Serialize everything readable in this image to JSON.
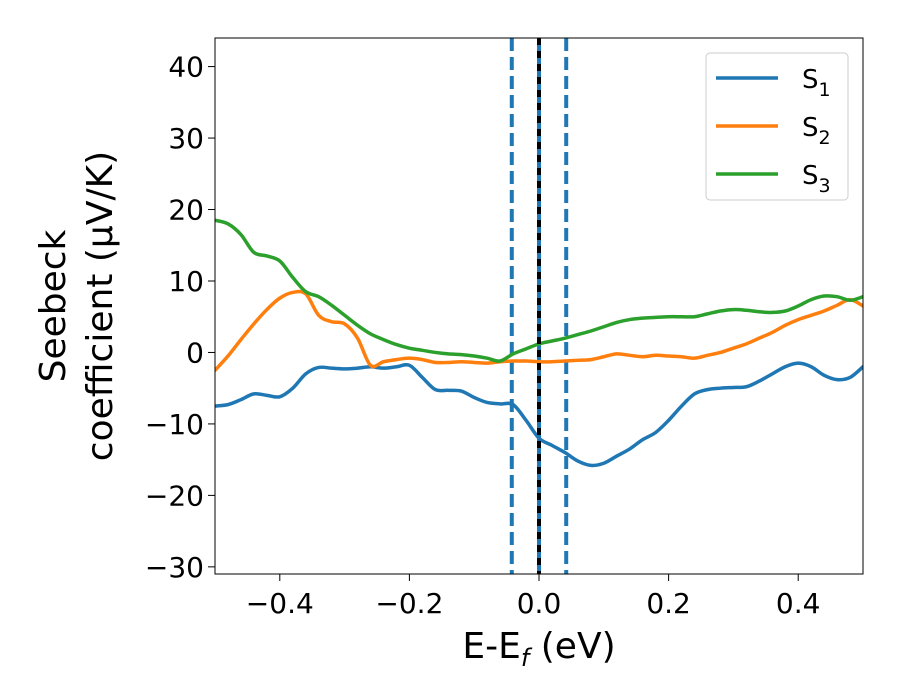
{
  "chart_data": {
    "type": "line",
    "xlabel": {
      "main": "E-E",
      "sub": "f",
      "unit": " (eV)"
    },
    "ylabel": {
      "line1": "Seebeck",
      "line2": "coefficient  (μV/K)"
    },
    "xlim": [
      -0.5,
      0.5
    ],
    "ylim": [
      -31,
      44
    ],
    "xticks": [
      -0.4,
      -0.2,
      0.0,
      0.2,
      0.4
    ],
    "xtick_labels": [
      "−0.4",
      "−0.2",
      "0.0",
      "0.2",
      "0.4"
    ],
    "yticks": [
      -30,
      -20,
      -10,
      0,
      10,
      20,
      30,
      40
    ],
    "ytick_labels": [
      "−30",
      "−20",
      "−10",
      "0",
      "10",
      "20",
      "30",
      "40"
    ],
    "grid": false,
    "legend_position": "top-right",
    "vlines": [
      {
        "x": -0.042,
        "style": "dashed",
        "color": "#1f77b4"
      },
      {
        "x": 0.0,
        "style": "solid",
        "color": "#1f77b4"
      },
      {
        "x": 0.0,
        "style": "dashed",
        "color": "#000000"
      },
      {
        "x": 0.042,
        "style": "dashed",
        "color": "#1f77b4"
      }
    ],
    "series": [
      {
        "name": "S",
        "sub": "1",
        "color": "#1f77b4",
        "x": [
          -0.5,
          -0.48,
          -0.46,
          -0.44,
          -0.42,
          -0.4,
          -0.38,
          -0.36,
          -0.34,
          -0.32,
          -0.3,
          -0.28,
          -0.26,
          -0.24,
          -0.22,
          -0.2,
          -0.18,
          -0.16,
          -0.14,
          -0.12,
          -0.1,
          -0.08,
          -0.06,
          -0.04,
          -0.02,
          0.0,
          0.02,
          0.04,
          0.06,
          0.08,
          0.1,
          0.12,
          0.14,
          0.16,
          0.18,
          0.2,
          0.22,
          0.24,
          0.26,
          0.28,
          0.3,
          0.32,
          0.34,
          0.36,
          0.38,
          0.4,
          0.42,
          0.44,
          0.46,
          0.48,
          0.5
        ],
        "y": [
          -7.5,
          -7.3,
          -6.6,
          -5.8,
          -6.0,
          -6.2,
          -5.0,
          -3.0,
          -2.1,
          -2.2,
          -2.3,
          -2.2,
          -2.0,
          -2.2,
          -2.0,
          -1.8,
          -3.5,
          -5.2,
          -5.3,
          -5.4,
          -6.3,
          -7.0,
          -7.2,
          -7.3,
          -9.5,
          -12.0,
          -13.0,
          -14.0,
          -15.2,
          -15.8,
          -15.5,
          -14.5,
          -13.5,
          -12.2,
          -11.2,
          -9.5,
          -7.5,
          -5.8,
          -5.2,
          -5.0,
          -4.9,
          -4.8,
          -4.0,
          -3.0,
          -2.0,
          -1.5,
          -2.0,
          -3.2,
          -3.8,
          -3.5,
          -2.0
        ]
      },
      {
        "name": "S",
        "sub": "2",
        "color": "#ff7f0e",
        "x": [
          -0.5,
          -0.48,
          -0.46,
          -0.44,
          -0.42,
          -0.4,
          -0.38,
          -0.36,
          -0.34,
          -0.32,
          -0.3,
          -0.28,
          -0.26,
          -0.24,
          -0.22,
          -0.2,
          -0.18,
          -0.16,
          -0.14,
          -0.12,
          -0.1,
          -0.08,
          -0.06,
          -0.04,
          -0.02,
          0.0,
          0.02,
          0.04,
          0.06,
          0.08,
          0.1,
          0.12,
          0.14,
          0.16,
          0.18,
          0.2,
          0.22,
          0.24,
          0.26,
          0.28,
          0.3,
          0.32,
          0.34,
          0.36,
          0.38,
          0.4,
          0.42,
          0.44,
          0.46,
          0.48,
          0.5
        ],
        "y": [
          -2.5,
          -0.5,
          1.8,
          4.0,
          6.0,
          7.6,
          8.4,
          8.2,
          5.2,
          4.3,
          4.0,
          2.0,
          -1.8,
          -1.3,
          -1.0,
          -0.8,
          -1.0,
          -1.4,
          -1.4,
          -1.3,
          -1.4,
          -1.5,
          -1.3,
          -1.2,
          -1.2,
          -1.3,
          -1.3,
          -1.2,
          -1.1,
          -1.0,
          -0.6,
          -0.2,
          -0.4,
          -0.6,
          -0.4,
          -0.5,
          -0.6,
          -0.8,
          -0.4,
          0.0,
          0.6,
          1.2,
          2.0,
          2.8,
          3.8,
          4.6,
          5.2,
          5.8,
          6.6,
          7.4,
          6.5
        ]
      },
      {
        "name": "S",
        "sub": "3",
        "color": "#2ca02c",
        "x": [
          -0.5,
          -0.48,
          -0.46,
          -0.44,
          -0.42,
          -0.4,
          -0.38,
          -0.36,
          -0.34,
          -0.32,
          -0.3,
          -0.28,
          -0.26,
          -0.24,
          -0.22,
          -0.2,
          -0.18,
          -0.16,
          -0.14,
          -0.12,
          -0.1,
          -0.08,
          -0.06,
          -0.04,
          -0.02,
          0.0,
          0.02,
          0.04,
          0.06,
          0.08,
          0.1,
          0.12,
          0.14,
          0.16,
          0.18,
          0.2,
          0.22,
          0.24,
          0.26,
          0.28,
          0.3,
          0.32,
          0.34,
          0.36,
          0.38,
          0.4,
          0.42,
          0.44,
          0.46,
          0.48,
          0.5
        ],
        "y": [
          18.5,
          18.0,
          16.5,
          14.0,
          13.5,
          12.8,
          10.5,
          8.5,
          7.8,
          6.6,
          5.2,
          3.8,
          2.6,
          1.8,
          1.1,
          0.6,
          0.3,
          0.0,
          -0.2,
          -0.3,
          -0.5,
          -0.8,
          -1.2,
          -0.2,
          0.5,
          1.2,
          1.6,
          2.0,
          2.5,
          3.0,
          3.6,
          4.2,
          4.6,
          4.8,
          4.9,
          5.0,
          5.0,
          5.0,
          5.4,
          5.8,
          6.0,
          5.9,
          5.7,
          5.6,
          5.8,
          6.5,
          7.4,
          7.9,
          7.8,
          7.3,
          7.8
        ]
      }
    ]
  }
}
